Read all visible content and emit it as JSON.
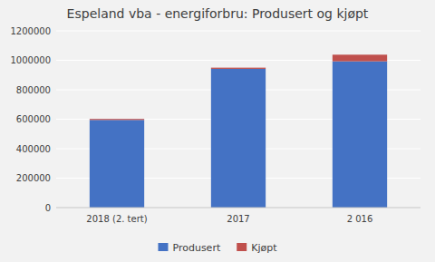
{
  "chart_data": {
    "type": "bar",
    "stacked": true,
    "title": "Espeland vba - energiforbru: Produsert og kjøpt",
    "categories": [
      "2018 (2. tert)",
      "2017",
      "2 016"
    ],
    "series": [
      {
        "name": "Produsert",
        "color": "#4472c4",
        "values": [
          595000,
          942000,
          993000
        ]
      },
      {
        "name": "Kjøpt",
        "color": "#c0504d",
        "values": [
          7000,
          8000,
          45000
        ]
      }
    ],
    "ylim": [
      0,
      1200000
    ],
    "yticks": [
      0,
      200000,
      400000,
      600000,
      800000,
      1000000,
      1200000
    ],
    "grid": true,
    "legend": "bottom"
  }
}
